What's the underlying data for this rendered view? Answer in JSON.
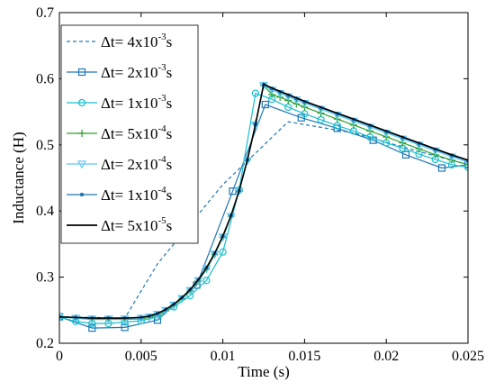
{
  "chart_data": {
    "type": "line",
    "xlabel": "Time (s)",
    "ylabel": "Inductance (H)",
    "xlim": [
      0,
      0.025
    ],
    "ylim": [
      0.2,
      0.7
    ],
    "x_ticks": [
      0,
      0.005,
      0.01,
      0.015,
      0.02,
      0.025
    ],
    "x_tick_labels": [
      "0",
      "0.005",
      "0.01",
      "0.015",
      "0.02",
      "0.025"
    ],
    "y_ticks": [
      0.2,
      0.3,
      0.4,
      0.5,
      0.6,
      0.7
    ],
    "y_tick_labels": [
      "0.2",
      "0.3",
      "0.4",
      "0.5",
      "0.6",
      "0.7"
    ],
    "grid": false,
    "legend_position": "top-left",
    "series": [
      {
        "name_prefix": "Δt= ",
        "name_base": "4x10",
        "name_exp": "-3",
        "name_unit": "s",
        "color": "#1f77b4",
        "dash": "dashed",
        "marker": "none",
        "x": [
          0,
          0.004,
          0.006,
          0.01,
          0.014,
          0.018,
          0.022,
          0.025
        ],
        "y": [
          0.24,
          0.238,
          0.32,
          0.44,
          0.535,
          0.518,
          0.49,
          0.47
        ]
      },
      {
        "name_prefix": "Δt= ",
        "name_base": "2x10",
        "name_exp": "-3",
        "name_unit": "s",
        "color": "#1f77b4",
        "dash": "solid",
        "marker": "square",
        "x": [
          0,
          0.002,
          0.004,
          0.006,
          0.0084,
          0.0106,
          0.0126,
          0.0148,
          0.017,
          0.0192,
          0.0212,
          0.0234,
          0.025
        ],
        "y": [
          0.24,
          0.223,
          0.224,
          0.235,
          0.288,
          0.43,
          0.561,
          0.541,
          0.525,
          0.507,
          0.485,
          0.465,
          0.47
        ]
      },
      {
        "name_prefix": "Δt= ",
        "name_base": "1x10",
        "name_exp": "-3",
        "name_unit": "s",
        "color": "#17becf",
        "dash": "solid",
        "marker": "circle",
        "x": [
          0,
          0.001,
          0.002,
          0.003,
          0.004,
          0.005,
          0.006,
          0.007,
          0.008,
          0.009,
          0.01,
          0.011,
          0.012,
          0.013,
          0.014,
          0.015,
          0.016,
          0.017,
          0.018,
          0.019,
          0.02,
          0.021,
          0.022,
          0.023,
          0.024,
          0.025
        ],
        "y": [
          0.24,
          0.233,
          0.23,
          0.23,
          0.232,
          0.234,
          0.24,
          0.255,
          0.272,
          0.295,
          0.338,
          0.432,
          0.578,
          0.569,
          0.557,
          0.547,
          0.538,
          0.529,
          0.521,
          0.512,
          0.503,
          0.495,
          0.486,
          0.478,
          0.47,
          0.466
        ]
      },
      {
        "name_prefix": "Δt= ",
        "name_base": "5x10",
        "name_exp": "-4",
        "name_unit": "s",
        "color": "#2ca02c",
        "dash": "solid",
        "marker": "plus",
        "x": [
          0,
          0.001,
          0.002,
          0.003,
          0.004,
          0.005,
          0.0055,
          0.006,
          0.0065,
          0.007,
          0.0075,
          0.008,
          0.0085,
          0.009,
          0.0095,
          0.01,
          0.0105,
          0.011,
          0.0115,
          0.012,
          0.0125,
          0.013,
          0.0135,
          0.014,
          0.0145,
          0.015,
          0.016,
          0.017,
          0.018,
          0.019,
          0.02,
          0.021,
          0.022,
          0.023,
          0.024,
          0.025
        ],
        "y": [
          0.24,
          0.238,
          0.236,
          0.236,
          0.236,
          0.237,
          0.239,
          0.243,
          0.249,
          0.257,
          0.267,
          0.279,
          0.294,
          0.312,
          0.334,
          0.36,
          0.392,
          0.43,
          0.477,
          0.533,
          0.59,
          0.576,
          0.572,
          0.567,
          0.562,
          0.557,
          0.548,
          0.539,
          0.53,
          0.521,
          0.512,
          0.503,
          0.494,
          0.485,
          0.477,
          0.47
        ]
      },
      {
        "name_prefix": "Δt= ",
        "name_base": "2x10",
        "name_exp": "-4",
        "name_unit": "s",
        "color": "#5bc8f5",
        "dash": "solid",
        "marker": "triangle-down",
        "x": [
          0,
          0.001,
          0.002,
          0.003,
          0.004,
          0.005,
          0.0055,
          0.006,
          0.0065,
          0.007,
          0.0075,
          0.008,
          0.0085,
          0.009,
          0.0095,
          0.01,
          0.0105,
          0.011,
          0.0115,
          0.012,
          0.0125,
          0.013,
          0.0135,
          0.014,
          0.0145,
          0.015,
          0.016,
          0.017,
          0.018,
          0.019,
          0.02,
          0.021,
          0.022,
          0.023,
          0.024,
          0.025
        ],
        "y": [
          0.24,
          0.238,
          0.237,
          0.237,
          0.237,
          0.238,
          0.24,
          0.244,
          0.25,
          0.258,
          0.268,
          0.28,
          0.295,
          0.313,
          0.335,
          0.361,
          0.392,
          0.43,
          0.476,
          0.53,
          0.59,
          0.583,
          0.578,
          0.573,
          0.568,
          0.563,
          0.554,
          0.545,
          0.536,
          0.527,
          0.518,
          0.509,
          0.5,
          0.491,
          0.482,
          0.474
        ]
      },
      {
        "name_prefix": "Δt= ",
        "name_base": "1x10",
        "name_exp": "-4",
        "name_unit": "s",
        "color": "#1f77b4",
        "dash": "solid",
        "marker": "dot",
        "x": [
          0,
          0.001,
          0.002,
          0.003,
          0.004,
          0.005,
          0.0055,
          0.006,
          0.0065,
          0.007,
          0.0075,
          0.008,
          0.0085,
          0.009,
          0.0095,
          0.01,
          0.0105,
          0.011,
          0.0115,
          0.012,
          0.0125,
          0.013,
          0.0135,
          0.014,
          0.0145,
          0.015,
          0.016,
          0.017,
          0.018,
          0.019,
          0.02,
          0.021,
          0.022,
          0.023,
          0.024,
          0.025
        ],
        "y": [
          0.24,
          0.239,
          0.238,
          0.238,
          0.238,
          0.239,
          0.241,
          0.245,
          0.251,
          0.259,
          0.269,
          0.281,
          0.296,
          0.314,
          0.336,
          0.362,
          0.393,
          0.431,
          0.477,
          0.531,
          0.591,
          0.585,
          0.58,
          0.575,
          0.57,
          0.565,
          0.556,
          0.547,
          0.538,
          0.529,
          0.52,
          0.511,
          0.502,
          0.493,
          0.484,
          0.476
        ]
      },
      {
        "name_prefix": "Δt= ",
        "name_base": "5x10",
        "name_exp": "-5",
        "name_unit": "s",
        "color": "#000000",
        "dash": "solid",
        "marker": "none",
        "x": [
          0,
          0.001,
          0.002,
          0.003,
          0.004,
          0.005,
          0.0055,
          0.006,
          0.0065,
          0.007,
          0.0075,
          0.008,
          0.0085,
          0.009,
          0.0095,
          0.01,
          0.0105,
          0.011,
          0.0115,
          0.012,
          0.0125,
          0.013,
          0.0135,
          0.014,
          0.0145,
          0.015,
          0.016,
          0.017,
          0.018,
          0.019,
          0.02,
          0.021,
          0.022,
          0.023,
          0.024,
          0.025
        ],
        "y": [
          0.24,
          0.239,
          0.238,
          0.238,
          0.238,
          0.239,
          0.241,
          0.245,
          0.251,
          0.259,
          0.269,
          0.281,
          0.296,
          0.314,
          0.336,
          0.362,
          0.393,
          0.431,
          0.477,
          0.531,
          0.592,
          0.586,
          0.581,
          0.576,
          0.571,
          0.566,
          0.557,
          0.548,
          0.539,
          0.53,
          0.521,
          0.512,
          0.503,
          0.494,
          0.485,
          0.477
        ]
      }
    ]
  }
}
